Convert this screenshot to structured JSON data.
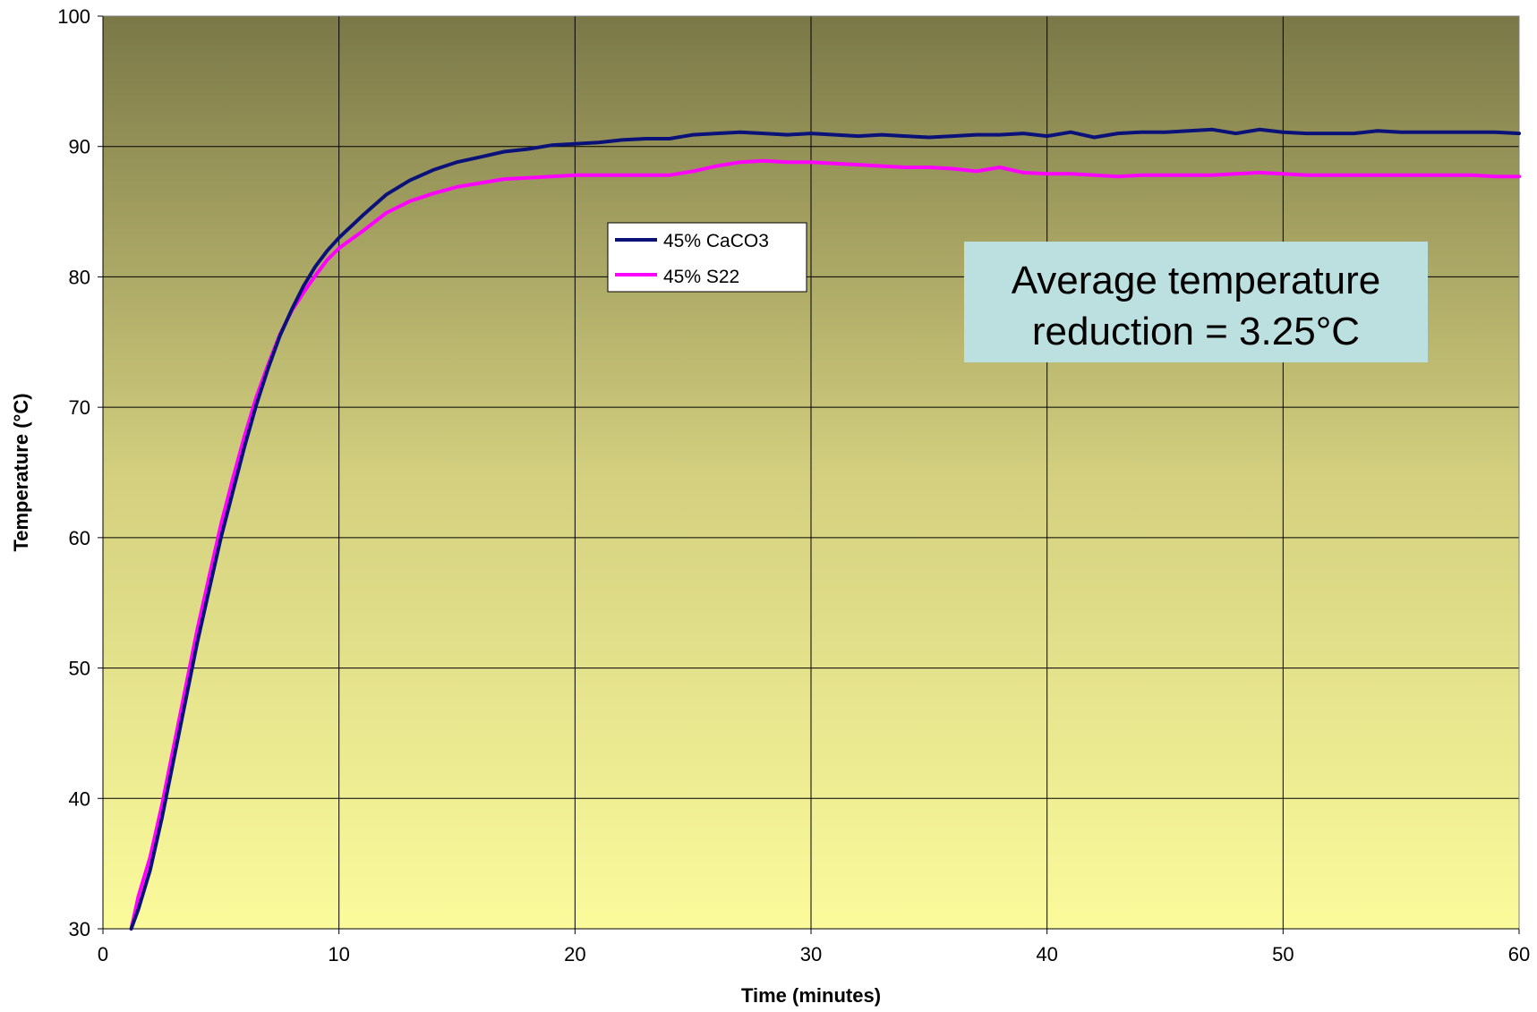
{
  "chart_data": {
    "type": "line",
    "xlabel": "Time (minutes)",
    "ylabel": "Temperature (°C)",
    "xlim": [
      0,
      60
    ],
    "ylim": [
      30,
      100
    ],
    "xticks": [
      0,
      10,
      20,
      30,
      40,
      50,
      60
    ],
    "yticks": [
      30,
      40,
      50,
      60,
      70,
      80,
      90,
      100
    ],
    "grid": true,
    "legend_position": "upper-center",
    "background_gradient": [
      "#7a7847",
      "#fbfb9c"
    ],
    "series": [
      {
        "name": "45% CaCO3",
        "color": "#0a1178",
        "x": [
          1.2,
          1.5,
          2,
          2.5,
          3,
          3.5,
          4,
          4.5,
          5,
          5.5,
          6,
          6.5,
          7,
          7.5,
          8,
          8.5,
          9,
          9.5,
          10,
          11,
          12,
          13,
          14,
          15,
          16,
          17,
          18,
          19,
          20,
          21,
          22,
          23,
          24,
          25,
          26,
          27,
          28,
          29,
          30,
          31,
          32,
          33,
          34,
          35,
          36,
          37,
          38,
          39,
          40,
          41,
          42,
          43,
          44,
          45,
          46,
          47,
          48,
          49,
          50,
          51,
          52,
          53,
          54,
          55,
          56,
          57,
          58,
          59,
          60
        ],
        "y": [
          30,
          31.5,
          34.5,
          38.5,
          43,
          47.5,
          52,
          56,
          60,
          63.5,
          67,
          70.2,
          73,
          75.5,
          77.5,
          79.3,
          80.8,
          82,
          83,
          84.7,
          86.3,
          87.4,
          88.2,
          88.8,
          89.2,
          89.6,
          89.8,
          90.1,
          90.2,
          90.3,
          90.5,
          90.6,
          90.6,
          90.9,
          91,
          91.1,
          91,
          90.9,
          91,
          90.9,
          90.8,
          90.9,
          90.8,
          90.7,
          90.8,
          90.9,
          90.9,
          91,
          90.8,
          91.1,
          90.7,
          91,
          91.1,
          91.1,
          91.2,
          91.3,
          91,
          91.3,
          91.1,
          91,
          91,
          91,
          91.2,
          91.1,
          91.1,
          91.1,
          91.1,
          91.1,
          91
        ],
        "values_note": ""
      },
      {
        "name": "45% S22",
        "color": "#ff00ff",
        "x": [
          1.2,
          1.5,
          2,
          2.5,
          3,
          3.5,
          4,
          4.5,
          5,
          5.5,
          6,
          6.5,
          7,
          7.5,
          8,
          8.5,
          9,
          9.5,
          10,
          11,
          12,
          13,
          14,
          15,
          16,
          17,
          18,
          19,
          20,
          21,
          22,
          23,
          24,
          25,
          26,
          27,
          28,
          29,
          30,
          31,
          32,
          33,
          34,
          35,
          36,
          37,
          38,
          39,
          40,
          41,
          42,
          43,
          44,
          45,
          46,
          47,
          48,
          49,
          50,
          51,
          52,
          53,
          54,
          55,
          56,
          57,
          58,
          59,
          60
        ],
        "y": [
          30,
          32.5,
          35.5,
          39.5,
          44,
          48.5,
          53,
          57,
          61,
          64.5,
          67.8,
          70.8,
          73.3,
          75.6,
          77.4,
          78.8,
          80.1,
          81.3,
          82.2,
          83.5,
          84.9,
          85.8,
          86.4,
          86.9,
          87.2,
          87.5,
          87.6,
          87.7,
          87.8,
          87.8,
          87.8,
          87.8,
          87.8,
          88.1,
          88.5,
          88.8,
          88.9,
          88.8,
          88.8,
          88.7,
          88.6,
          88.5,
          88.4,
          88.4,
          88.3,
          88.1,
          88.4,
          88,
          87.9,
          87.9,
          87.8,
          87.7,
          87.8,
          87.8,
          87.8,
          87.8,
          87.9,
          88,
          87.9,
          87.8,
          87.8,
          87.8,
          87.8,
          87.8,
          87.8,
          87.8,
          87.8,
          87.7,
          87.7
        ]
      }
    ],
    "annotation": {
      "line1": "Average temperature",
      "line2": "reduction = 3.25°C",
      "background": "#bce0e0"
    }
  }
}
